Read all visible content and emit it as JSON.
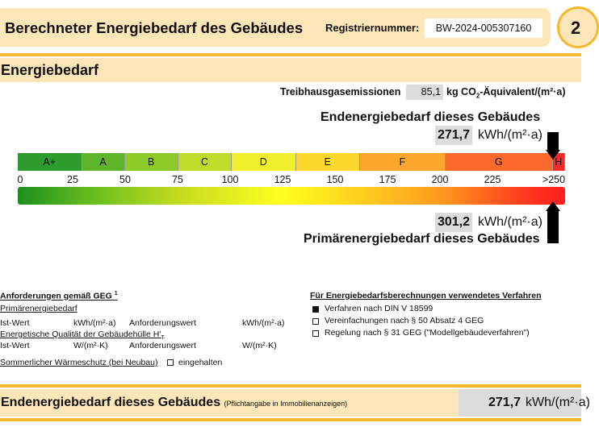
{
  "header": {
    "title": "Berechneter Energiebedarf des Gebäudes",
    "reg_label": "Registriernummer:",
    "reg_value": "BW-2024-005307160",
    "page_number": "2"
  },
  "section": {
    "title": "Energiebedarf"
  },
  "emissions": {
    "label": "Treibhausgasemissionen",
    "value": "85,1",
    "unit_pre": "kg CO",
    "unit_sub": "2",
    "unit_post": "-Äquivalent/(m²·a)"
  },
  "endenergie": {
    "title": "Endenergiebedarf dieses Gebäudes",
    "value": "271,7",
    "unit": "kWh/(m²·a)"
  },
  "scale": {
    "classes": [
      {
        "label": "A+",
        "color": "#2e9b2e"
      },
      {
        "label": "A",
        "color": "#5fb52a"
      },
      {
        "label": "B",
        "color": "#8ccb2a"
      },
      {
        "label": "C",
        "color": "#bedd2a"
      },
      {
        "label": "D",
        "color": "#f2ef2c"
      },
      {
        "label": "E",
        "color": "#fcd82c"
      },
      {
        "label": "F",
        "color": "#fba62c"
      },
      {
        "label": "G",
        "color": "#fb6a2c"
      },
      {
        "label": "H",
        "color": "#f52a2a"
      }
    ],
    "ticks": [
      "0",
      "25",
      "50",
      "75",
      "100",
      "125",
      "150",
      "175",
      "200",
      "225",
      ">250"
    ],
    "max": 250,
    "end_marker_value": 271.7,
    "primary_marker_value": 301.2
  },
  "primaer": {
    "title": "Primärenergiebedarf dieses Gebäudes",
    "value": "301,2",
    "unit": "kWh/(m²·a)"
  },
  "requirements": {
    "heading": "Anforderungen gemäß GEG",
    "heading_sup": "1",
    "primary_label": "Primärenergiebedarf",
    "ist_wert": "Ist-Wert",
    "kwh_unit": "kWh/(m²·a)",
    "anforderungswert": "Anforderungswert",
    "envelope_label": "Energetische Qualität der Gebäudehülle H'",
    "envelope_sub": "T",
    "w_unit": "W/(m²·K)",
    "summer_label": "Sommerlicher Wärmeschutz (bei Neubau)",
    "eingehalten": "eingehalten"
  },
  "methods": {
    "heading": "Für Energiebedarfsberechnungen verwendetes Verfahren",
    "items": [
      {
        "label": "Verfahren nach DIN V 18599",
        "checked": true
      },
      {
        "label": "Vereinfachungen nach § 50 Absatz 4 GEG",
        "checked": false
      },
      {
        "label": "Regelung nach § 31 GEG (\"Modellgebäudeverfahren\")",
        "checked": false
      }
    ]
  },
  "footer": {
    "title": "Endenergiebedarf dieses Gebäudes",
    "note": "(Pflichtangabe in Immobilienanzeigen)",
    "value": "271,7",
    "unit": "kWh/(m²·a)"
  }
}
